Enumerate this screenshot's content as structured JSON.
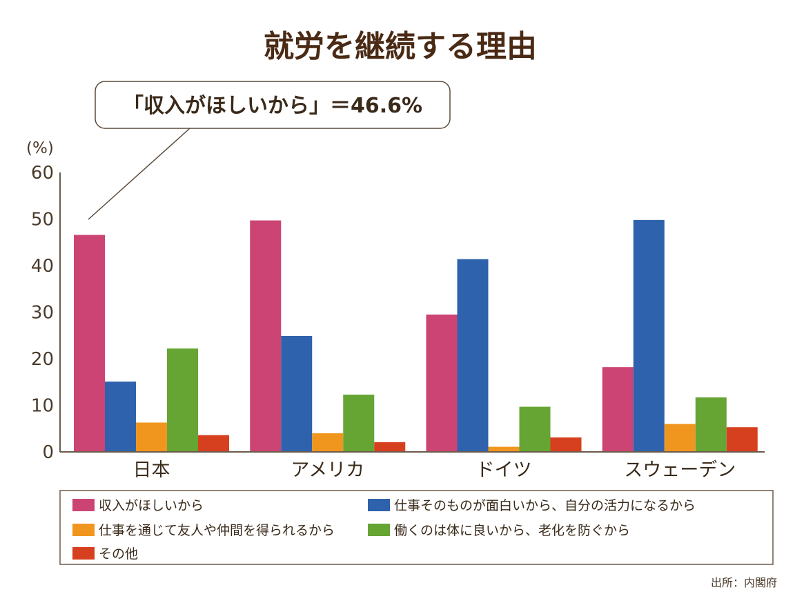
{
  "title": "就労を継続する理由",
  "callout": "「収入がほしいから」＝46.6%",
  "source": "出所：内閣府",
  "colors": {
    "text": "#4a3a2a",
    "axis": "#6a5a4a"
  },
  "chart_data": {
    "type": "bar",
    "ylabel": "(%)",
    "ylim": [
      0,
      60
    ],
    "yticks": [
      "0",
      "10",
      "20",
      "30",
      "40",
      "50",
      "60"
    ],
    "categories": [
      "日本",
      "アメリカ",
      "ドイツ",
      "スウェーデン"
    ],
    "series": [
      {
        "name": "収入がほしいから",
        "color": "#cc4474",
        "values": [
          46.6,
          49.7,
          29.5,
          18.2
        ]
      },
      {
        "name": "仕事そのものが面白いから、自分の活力になるから",
        "color": "#2e62ac",
        "values": [
          15.1,
          24.9,
          41.4,
          49.8
        ]
      },
      {
        "name": "仕事を通じて友人や仲間を得られるから",
        "color": "#f0961e",
        "values": [
          6.3,
          4.0,
          1.1,
          6.0
        ]
      },
      {
        "name": "働くのは体に良いから、老化を防ぐから",
        "color": "#66a434",
        "values": [
          22.2,
          12.3,
          9.7,
          11.7
        ]
      },
      {
        "name": "その他",
        "color": "#d6401e",
        "values": [
          3.6,
          2.1,
          3.1,
          5.3
        ]
      }
    ],
    "grid": false,
    "legend": "bottom"
  }
}
